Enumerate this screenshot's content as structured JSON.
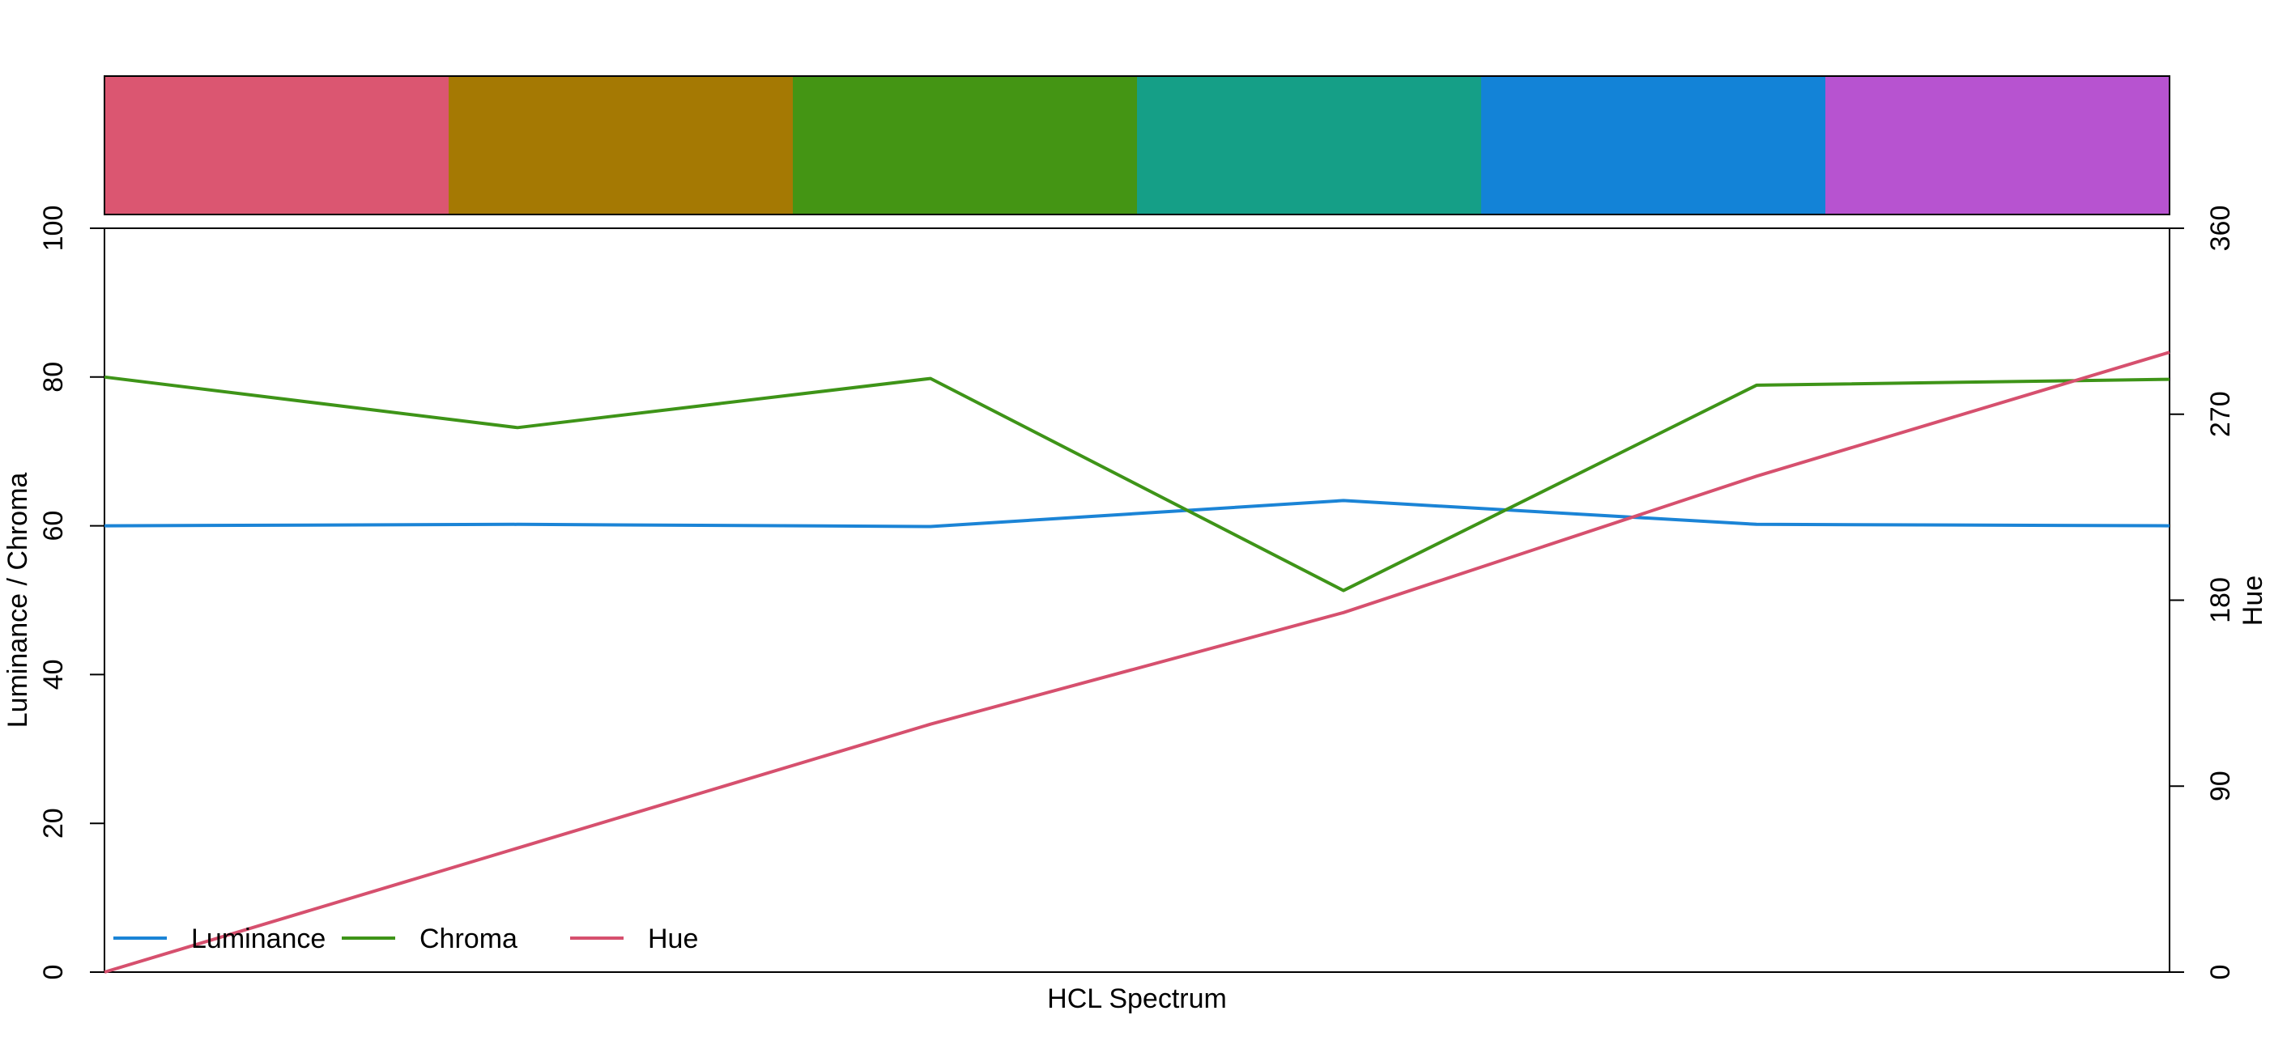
{
  "chart_data": {
    "type": "line",
    "swatches": [
      "#DB5671",
      "#A57903",
      "#449514",
      "#159F87",
      "#1383D7",
      "#B753D0"
    ],
    "x_positions": [
      1,
      2,
      3,
      4,
      5,
      6
    ],
    "xlabel": "HCL Spectrum",
    "ylabel_left": "Luminance / Chroma",
    "ylabel_right": "Hue",
    "ylim_left": [
      0,
      100
    ],
    "ylim_right": [
      0,
      360
    ],
    "yticks_left": [
      "0",
      "20",
      "40",
      "60",
      "80",
      "100"
    ],
    "yticks_right": [
      "0",
      "90",
      "180",
      "270",
      "360"
    ],
    "series": [
      {
        "name": "Luminance",
        "axis": "left",
        "color": "#1B84D6",
        "values": [
          60.0,
          60.2,
          59.9,
          63.4,
          60.2,
          60.0
        ]
      },
      {
        "name": "Chroma",
        "axis": "left",
        "color": "#3E9418",
        "values": [
          80.0,
          73.2,
          79.8,
          51.3,
          78.9,
          79.7
        ]
      },
      {
        "name": "Hue",
        "axis": "right",
        "color": "#D6506E",
        "values": [
          0,
          60,
          120,
          174,
          240,
          300
        ]
      }
    ],
    "legend": [
      "Luminance",
      "Chroma",
      "Hue"
    ],
    "legend_position": "bottom-left",
    "grid": false
  }
}
